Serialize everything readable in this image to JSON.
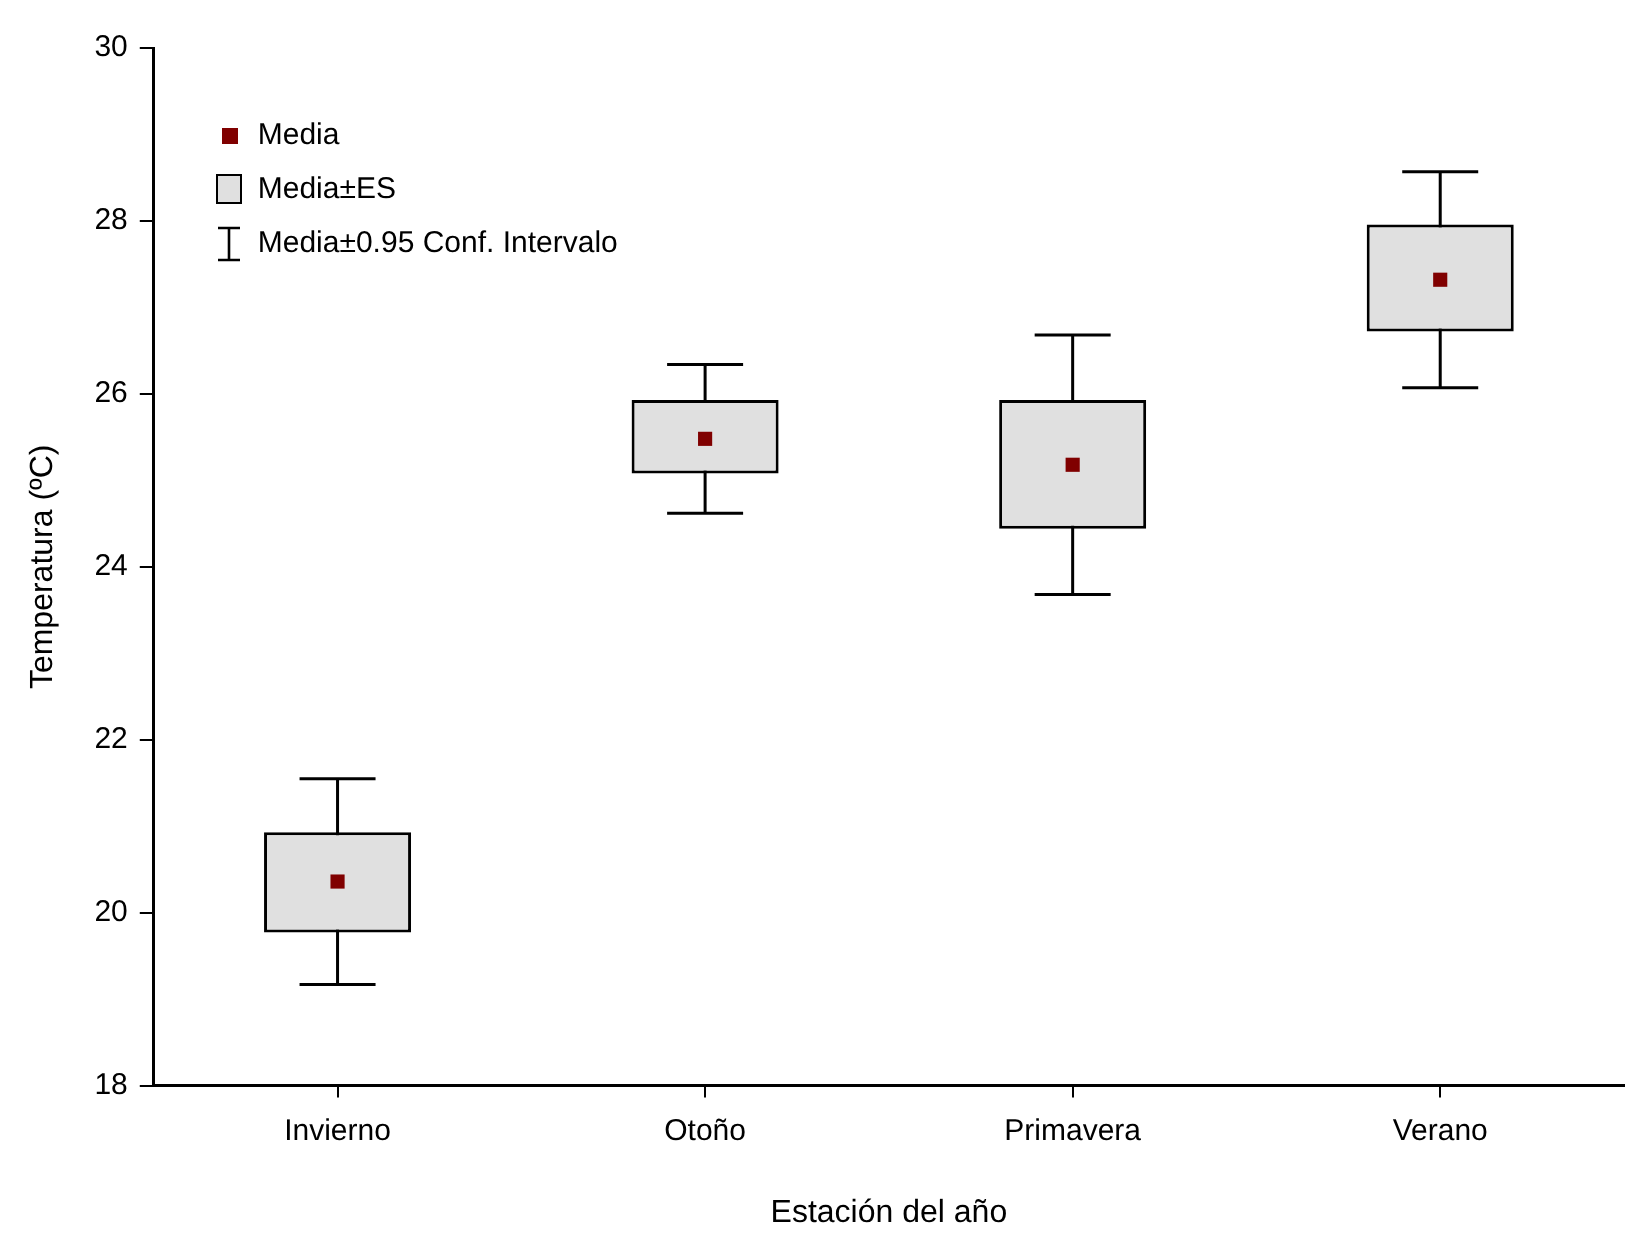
{
  "chart_data": {
    "type": "bar",
    "xlabel": "Estación del año",
    "ylabel": "Temperatura (ºC)",
    "categories": [
      "Invierno",
      "Otoño",
      "Primavera",
      "Verano"
    ],
    "series": [
      {
        "name": "Media",
        "type": "scatter",
        "marker": "square",
        "color": "#800000",
        "values": [
          20.36,
          25.48,
          25.18,
          27.32
        ],
        "errors": [
          1.19,
          0.86,
          1.5,
          1.25
        ]
      },
      {
        "name": "Media±ES",
        "color": "#e0e0e0",
        "base": [
          19.77,
          25.08,
          24.44,
          26.72
        ],
        "values": [
          1.16,
          0.85,
          1.49,
          1.24
        ]
      }
    ],
    "annotations": [
      "Media±0.95 Conf. Intervalo"
    ],
    "ylim": [
      18,
      30
    ],
    "yticks": [
      18,
      20,
      22,
      24,
      26,
      28,
      30
    ],
    "legend": "top left"
  }
}
